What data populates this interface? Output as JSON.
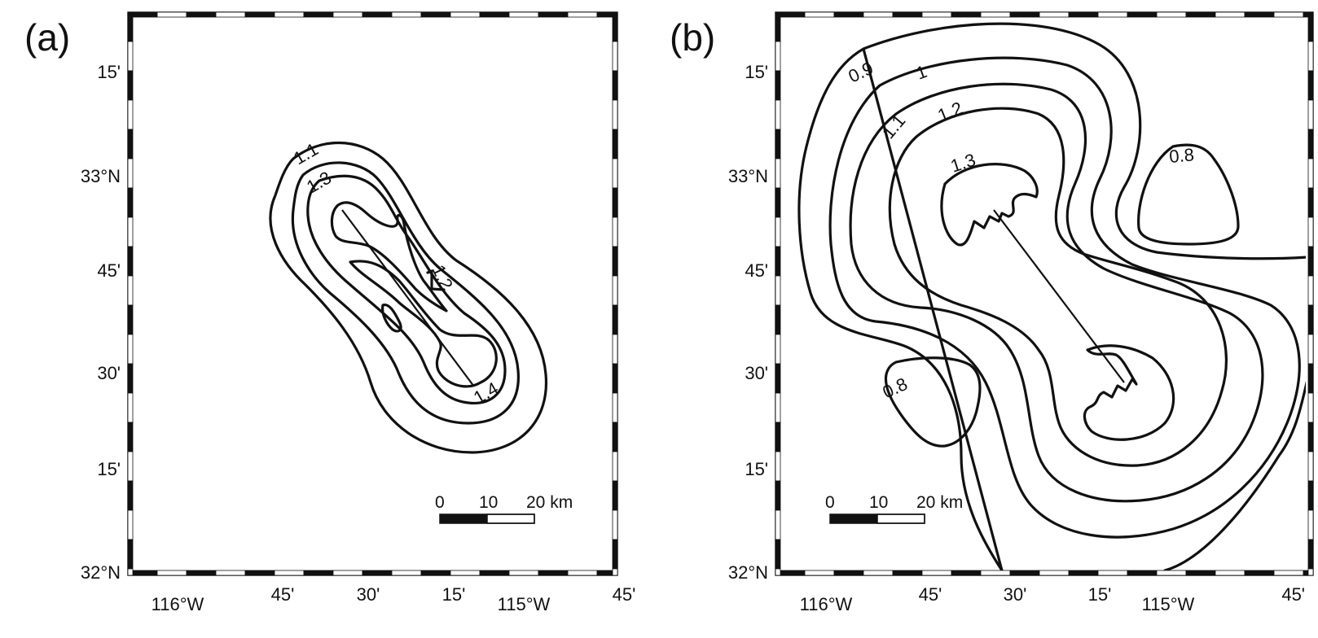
{
  "figure": {
    "panels": [
      {
        "id": "a",
        "label": "(a)",
        "lat_ticks": [
          "15'",
          "33°N",
          "45'",
          "30'",
          "15'",
          "32°N"
        ],
        "lon_ticks": [
          "116°W",
          "45'",
          "30'",
          "15'",
          "115°W",
          "45'"
        ],
        "contour_labels": [
          "1.1",
          "1.3",
          "1.2",
          "1.4"
        ],
        "scale_bar": {
          "labels": [
            "0",
            "10",
            "20 km"
          ]
        }
      },
      {
        "id": "b",
        "label": "(b)",
        "lat_ticks": [
          "15'",
          "33°N",
          "45'",
          "30'",
          "15'",
          "32°N"
        ],
        "lon_ticks": [
          "116°W",
          "45'",
          "30'",
          "15'",
          "115°W",
          "45'"
        ],
        "contour_labels": [
          "0.9",
          "1",
          "1.1",
          "1.2",
          "1.3",
          "0.8",
          "0.8"
        ],
        "scale_bar": {
          "labels": [
            "0",
            "10",
            "20 km"
          ]
        }
      }
    ]
  }
}
